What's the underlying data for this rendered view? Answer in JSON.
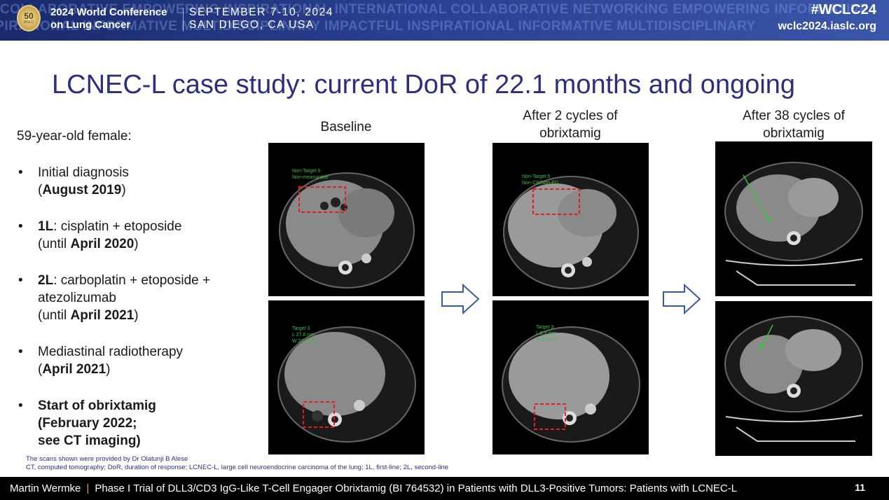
{
  "banner": {
    "background_words_row1": "COLLABORATIVE EMPOWERING INSPIRATIONAL INTERNATIONAL COLLABORATIVE NETWORKING EMPOWERING INFORMATIVE",
    "background_words_row2": "INSPIRATIONAL INFORMATIVE MULTIDISCIPLINARY IMPACTFUL INSPIRATIONAL INFORMATIVE MULTIDISCIPLINARY",
    "logo_number": "50",
    "logo_sub": "IASLC",
    "conference_line1": "2024 World Conference",
    "conference_line2": "on Lung Cancer",
    "date_line1": "SEPTEMBER 7-10, 2024",
    "date_line2": "SAN DIEGO, CA USA",
    "hashtag": "#WCLC24",
    "website": "wclc2024.iaslc.org",
    "colors": {
      "background": "#1a2a6c",
      "accent": "#3a56a8"
    }
  },
  "slide": {
    "title": "LCNEC-L case study: current DoR of 22.1 months and ongoing",
    "title_color": "#2b2f7d",
    "patient": "59-year-old female:",
    "bullet_symbol": "•",
    "bullets": [
      {
        "line1_plain": "Initial diagnosis",
        "line2_prefix": "(",
        "line2_bold": "August 2019",
        "line2_suffix": ")"
      },
      {
        "line1_bold": "1L",
        "line1_plain": ": cisplatin + etoposide",
        "line2_prefix": "(until ",
        "line2_bold": "April 2020",
        "line2_suffix": ")"
      },
      {
        "line1_bold": "2L",
        "line1_plain": ": carboplatin + etoposide +",
        "line1b_plain": "atezolizumab",
        "line2_prefix": "(until ",
        "line2_bold": "April 2021",
        "line2_suffix": ")"
      },
      {
        "line1_plain": "Mediastinal radiotherapy",
        "line2_prefix": "(",
        "line2_bold": "April 2021",
        "line2_suffix": ")"
      },
      {
        "line1_bold": "Start of obrixtamig",
        "line2_bold": "(February 2022;",
        "line3_bold": "see CT imaging)"
      }
    ],
    "columns": [
      {
        "header": "Baseline"
      },
      {
        "header_line1": "After 2 cycles of",
        "header_line2": "obrixtamig"
      },
      {
        "header_line1": "After 38 cycles of",
        "header_line2": "obrixtamig"
      }
    ],
    "scan_labels": {
      "baseline_top_line1": "Non-Target 5",
      "baseline_top_line2": "Non-measurable",
      "cycle2_top_line1": "Non-Target 5",
      "cycle2_top_line2": "Non-CR/Non-PD",
      "baseline_bottom_line1": "Target 3",
      "baseline_bottom_line2": "L 27.8 mm",
      "baseline_bottom_line3": "W 22.4 mm",
      "cycle2_bottom_line1": "Target 3",
      "cycle2_bottom_line2": "L 8.3 mm",
      "cycle2_bottom_line3": "W 6.8 mm"
    },
    "footnote1": "The scans shown were provided by Dr Olatunji B Alese",
    "footnote2": "CT, computed tomography; DoR, duration of response; LCNEC-L, large cell neuroendocrine carcinoma of the lung; 1L, first-line; 2L, second-line"
  },
  "footer": {
    "presenter": "Martin Wermke",
    "separator": "|",
    "talk_title": "Phase I Trial of DLL3/CD3 IgG-Like T-Cell Engager Obrixtamig (BI 764532) in Patients with DLL3-Positive Tumors: Patients with LCNEC-L",
    "page_number": "11",
    "separator_color": "#f0a030"
  }
}
